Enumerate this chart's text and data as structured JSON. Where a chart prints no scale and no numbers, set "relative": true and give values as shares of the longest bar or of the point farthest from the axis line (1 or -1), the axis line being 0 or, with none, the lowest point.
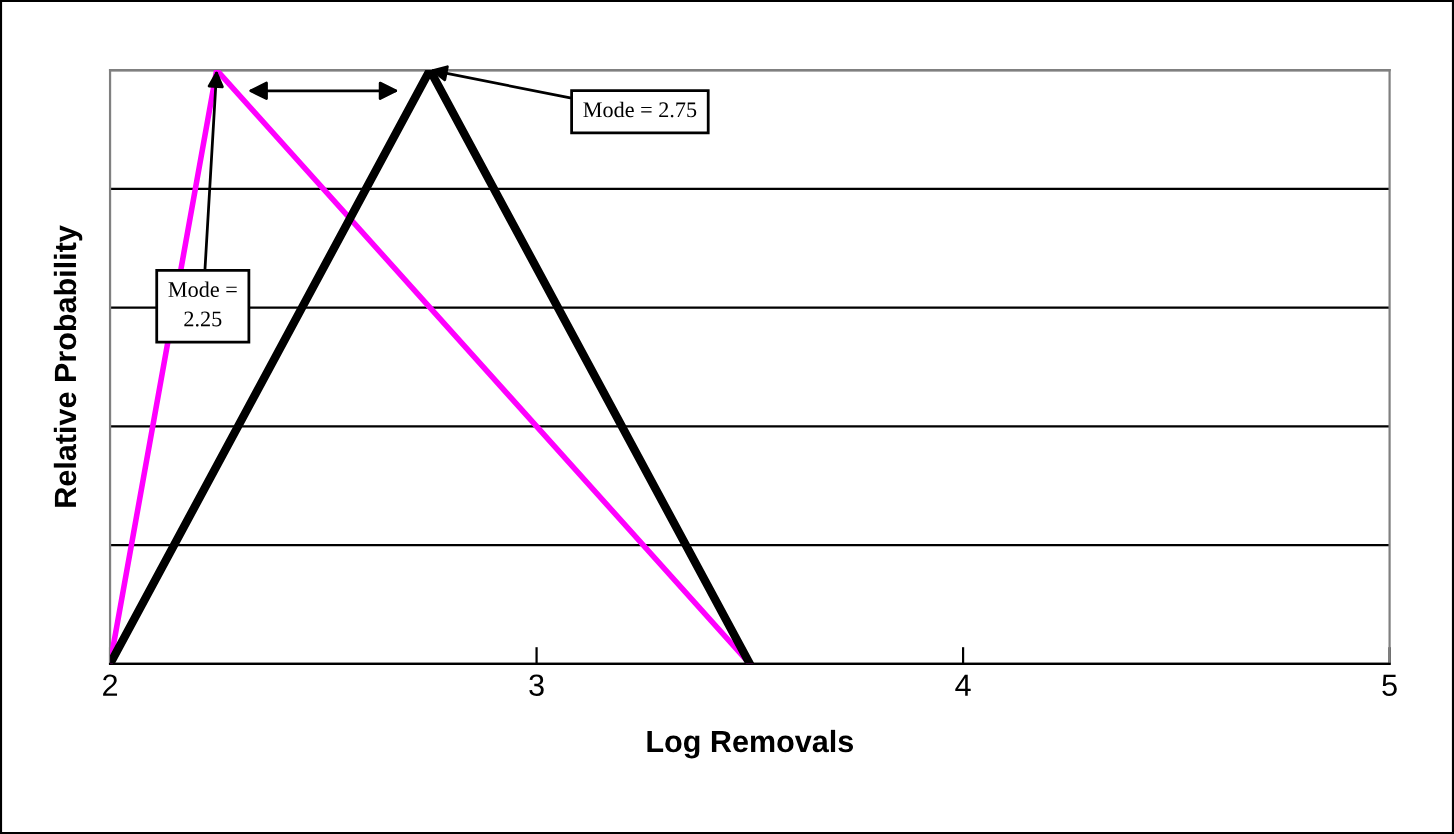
{
  "chart_data": {
    "type": "line",
    "xlabel": "Log Removals",
    "ylabel": "Relative Probability",
    "relative": true,
    "xlim": [
      2,
      5
    ],
    "xticks": [
      2,
      3,
      4,
      5
    ],
    "grid": "y",
    "series": [
      {
        "color": "#ff00ff",
        "x": [
          2,
          2.25,
          3.5
        ],
        "values": [
          0,
          1,
          0
        ]
      },
      {
        "color": "#000000",
        "x": [
          2,
          2.75,
          3.5
        ],
        "values": [
          0,
          1,
          0
        ]
      }
    ],
    "annotations": [
      {
        "text": "Mode = 2.75",
        "x": 2.75,
        "y": 1
      },
      {
        "text": "Mode =\n2.25",
        "x": 2.25,
        "y": 1
      }
    ]
  }
}
